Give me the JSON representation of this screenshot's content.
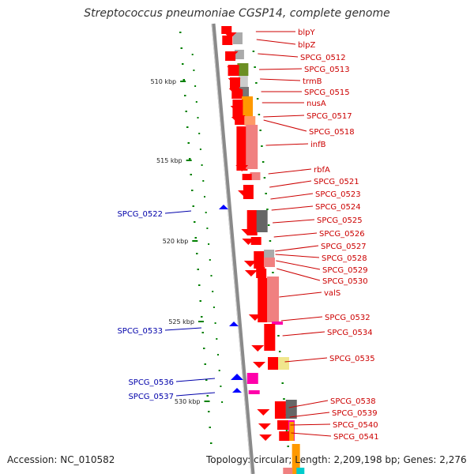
{
  "title": "Streptococcus pneumoniae CGSP14, complete genome",
  "footer": {
    "accession": "Accession: NC_010582",
    "topology": "Topology: circular; Length: 2,209,198 bp; Genes: 2,276"
  },
  "scale": {
    "ticks": [
      {
        "label": "510 kbp"
      },
      {
        "label": "515 kbp"
      },
      {
        "label": "520 kbp"
      },
      {
        "label": "525 kbp"
      },
      {
        "label": "530 kbp"
      }
    ]
  },
  "forward_genes": [
    "blpY",
    "blpZ",
    "SPCG_0512",
    "SPCG_0513",
    "trmB",
    "SPCG_0515",
    "nusA",
    "SPCG_0517",
    "SPCG_0518",
    "infB",
    "rbfA",
    "SPCG_0521",
    "SPCG_0523",
    "SPCG_0524",
    "SPCG_0525",
    "SPCG_0526",
    "SPCG_0527",
    "SPCG_0528",
    "SPCG_0529",
    "SPCG_0530",
    "valS",
    "SPCG_0532",
    "SPCG_0534",
    "SPCG_0535",
    "SPCG_0538",
    "SPCG_0539",
    "SPCG_0540",
    "SPCG_0541"
  ],
  "reverse_genes": [
    "SPCG_0522",
    "SPCG_0533",
    "SPCG_0536",
    "SPCG_0537"
  ],
  "colors": {
    "forward_label": "#cc0000",
    "reverse_label": "#0000aa",
    "forward_feature": "#ff0000",
    "reverse_feature": "#0000ff",
    "backbone": "#808080",
    "tick": "#008000"
  }
}
